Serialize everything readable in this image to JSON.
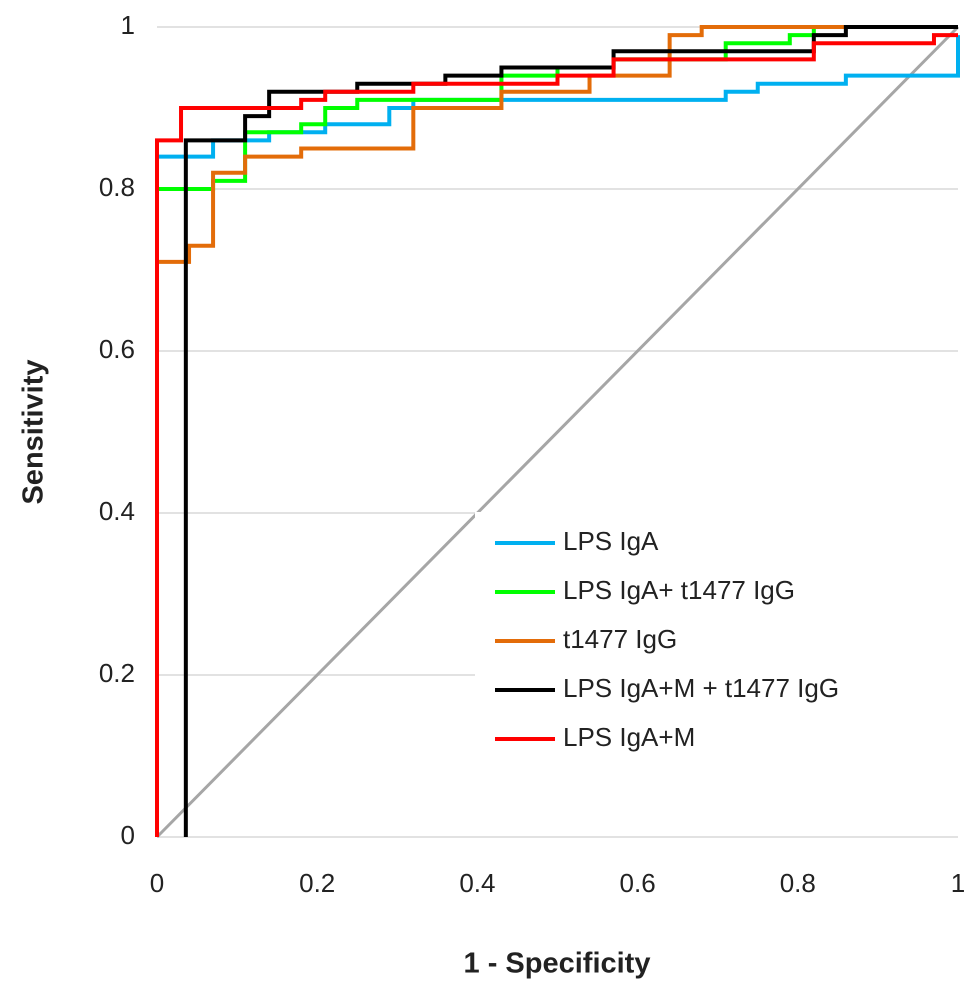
{
  "chart_data": {
    "type": "line",
    "step": true,
    "x_label": "1 - Specificity",
    "y_label": "Sensitivity",
    "xlim": [
      0,
      1
    ],
    "ylim": [
      0,
      1
    ],
    "xticks": [
      0,
      0.2,
      0.4,
      0.6,
      0.8,
      1
    ],
    "yticks": [
      0,
      0.2,
      0.4,
      0.6,
      0.8,
      1
    ],
    "grid": true,
    "legend": "lower right",
    "reference_line": {
      "x": [
        0,
        1
      ],
      "values": [
        0,
        1
      ],
      "color": "#a6a6a6"
    },
    "series": [
      {
        "name": "LPS IgA",
        "color": "#00b0f0",
        "x": [
          0,
          0.07,
          0.07,
          0.14,
          0.14,
          0.21,
          0.21,
          0.29,
          0.29,
          0.32,
          0.32,
          0.71,
          0.71,
          0.75,
          0.75,
          0.86,
          0.86,
          1,
          1
        ],
        "values": [
          0.84,
          0.84,
          0.86,
          0.86,
          0.87,
          0.87,
          0.88,
          0.88,
          0.9,
          0.9,
          0.91,
          0.91,
          0.92,
          0.92,
          0.93,
          0.93,
          0.94,
          0.94,
          0.99
        ]
      },
      {
        "name": "LPS IgA+ t1477 IgG",
        "color": "#00ff00",
        "x": [
          0,
          0.07,
          0.07,
          0.11,
          0.11,
          0.18,
          0.18,
          0.21,
          0.21,
          0.25,
          0.25,
          0.43,
          0.43,
          0.5,
          0.5,
          0.57,
          0.57,
          0.71,
          0.71,
          0.79,
          0.79,
          0.82,
          0.82,
          1
        ],
        "values": [
          0.8,
          0.8,
          0.81,
          0.81,
          0.87,
          0.87,
          0.88,
          0.88,
          0.9,
          0.9,
          0.91,
          0.91,
          0.94,
          0.94,
          0.95,
          0.95,
          0.96,
          0.96,
          0.98,
          0.98,
          0.99,
          0.99,
          1,
          1
        ]
      },
      {
        "name": "t1477 IgG",
        "color": "#e36c09",
        "x": [
          0,
          0.04,
          0.04,
          0.07,
          0.07,
          0.11,
          0.11,
          0.18,
          0.18,
          0.32,
          0.32,
          0.43,
          0.43,
          0.54,
          0.54,
          0.64,
          0.64,
          0.68,
          0.68,
          1
        ],
        "values": [
          0.71,
          0.71,
          0.73,
          0.73,
          0.82,
          0.82,
          0.84,
          0.84,
          0.85,
          0.85,
          0.9,
          0.9,
          0.92,
          0.92,
          0.94,
          0.94,
          0.99,
          0.99,
          1,
          1
        ]
      },
      {
        "name": "LPS IgA+M + t1477 IgG",
        "color": "#000000",
        "x": [
          0.036,
          0.036,
          0.11,
          0.11,
          0.14,
          0.14,
          0.25,
          0.25,
          0.36,
          0.36,
          0.43,
          0.43,
          0.57,
          0.57,
          0.82,
          0.82,
          0.86,
          0.86,
          1
        ],
        "values": [
          0,
          0.86,
          0.86,
          0.89,
          0.89,
          0.92,
          0.92,
          0.93,
          0.93,
          0.94,
          0.94,
          0.95,
          0.95,
          0.97,
          0.97,
          0.99,
          0.99,
          1,
          1
        ]
      },
      {
        "name": "LPS IgA+M",
        "color": "#ff0000",
        "x": [
          0,
          0,
          0.03,
          0.03,
          0.18,
          0.18,
          0.21,
          0.21,
          0.32,
          0.32,
          0.5,
          0.5,
          0.57,
          0.57,
          0.82,
          0.82,
          0.97,
          0.97,
          1
        ],
        "values": [
          0,
          0.86,
          0.86,
          0.9,
          0.9,
          0.91,
          0.91,
          0.92,
          0.92,
          0.93,
          0.93,
          0.94,
          0.94,
          0.96,
          0.96,
          0.98,
          0.98,
          0.99,
          0.99
        ]
      }
    ]
  }
}
